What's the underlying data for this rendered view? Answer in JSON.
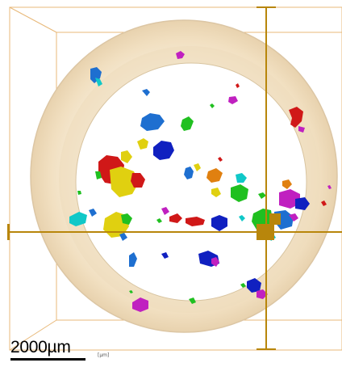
{
  "scale_bar": {
    "label": "2000µm",
    "unit": "[µm]"
  },
  "colors": {
    "bounding_box": "#e8b878",
    "crosshair": "#b8860b",
    "ring": "#f3e2c4",
    "ring_edge": "#d9c3a0",
    "particles": [
      "#1e6fd0",
      "#d01818",
      "#e0d010",
      "#20c020",
      "#c020c0",
      "#10c8c8",
      "#1020c0",
      "#e08010",
      "#a03030"
    ]
  }
}
